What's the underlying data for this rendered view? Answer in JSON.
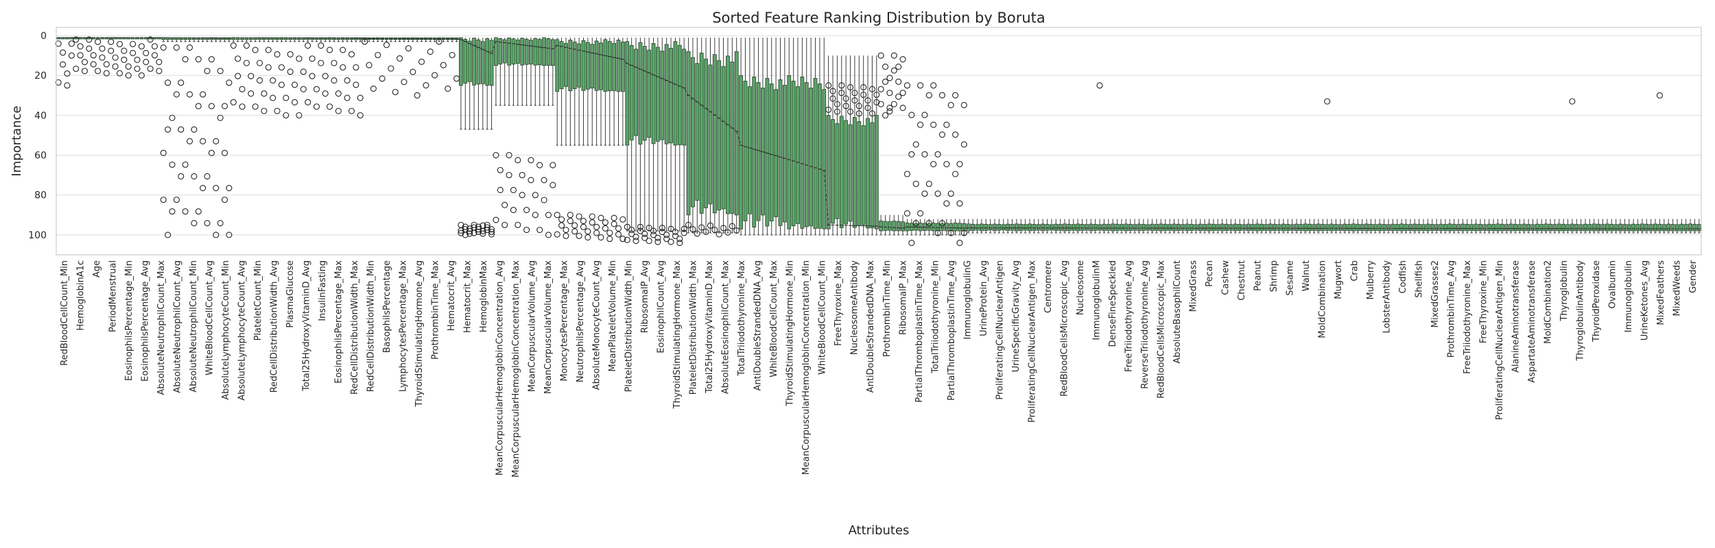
{
  "chart_data": {
    "type": "box",
    "title": "Sorted Feature Ranking Distribution by Boruta",
    "xlabel": "Attributes",
    "ylabel": "Importance",
    "y_axis_inverted": true,
    "ylim": [
      0,
      110
    ],
    "yticks": [
      0,
      20,
      40,
      60,
      80,
      100
    ],
    "grid": "horizontal",
    "box_color": "#5aa469",
    "legend": "none",
    "segments": [
      {
        "count": 4,
        "q1": 1,
        "q3": 1,
        "med": 1,
        "wlo": 1,
        "whi": 1,
        "out_lo": 4,
        "out_hi": 28,
        "n_out": 2
      },
      {
        "count": 20,
        "q1": 1,
        "q3": 1,
        "med": 1,
        "wlo": 1,
        "whi": 1,
        "out_lo": 2,
        "out_hi": 20,
        "n_out": 2
      },
      {
        "count": 16,
        "q1": 1,
        "q3": 2,
        "med": 1,
        "wlo": 1,
        "whi": 3,
        "out_lo": 6,
        "out_hi": 100,
        "n_out": 3
      },
      {
        "count": 30,
        "q1": 1,
        "q3": 2,
        "med": 1,
        "wlo": 1,
        "whi": 3,
        "out_lo": 5,
        "out_hi": 40,
        "n_out": 2
      },
      {
        "count": 22,
        "q1": 1,
        "q3": 2,
        "med": 1.5,
        "wlo": 1,
        "whi": 3,
        "out_lo": 3,
        "out_hi": 30,
        "n_out": 1
      },
      {
        "count": 8,
        "q1": 1,
        "q3": 25,
        "med": 2,
        "wlo": 1,
        "whi": 47,
        "out_lo": 95,
        "out_hi": 100,
        "n_out": 3
      },
      {
        "count": 14,
        "q1": 1,
        "q3": 15,
        "med": 3,
        "wlo": 1,
        "whi": 35,
        "out_lo": 60,
        "out_hi": 100,
        "n_out": 2
      },
      {
        "count": 16,
        "q1": 2,
        "q3": 28,
        "med": 5,
        "wlo": 1,
        "whi": 55,
        "out_lo": 90,
        "out_hi": 102,
        "n_out": 2
      },
      {
        "count": 14,
        "q1": 3,
        "q3": 55,
        "med": 14,
        "wlo": 1,
        "whi": 98,
        "out_lo": 96,
        "out_hi": 104,
        "n_out": 2
      },
      {
        "count": 12,
        "q1": 8,
        "q3": 90,
        "med": 30,
        "wlo": 1,
        "whi": 99,
        "out_lo": 95,
        "out_hi": 100,
        "n_out": 1
      },
      {
        "count": 20,
        "q1": 20,
        "q3": 97,
        "med": 55,
        "wlo": 1,
        "whi": 100,
        "out_lo": 0,
        "out_hi": 0,
        "n_out": 0
      },
      {
        "count": 12,
        "q1": 40,
        "q3": 97,
        "med": 95,
        "wlo": 10,
        "whi": 100,
        "out_lo": 25,
        "out_hi": 40,
        "n_out": 2
      },
      {
        "count": 6,
        "q1": 93,
        "q3": 98,
        "med": 96,
        "wlo": 90,
        "whi": 100,
        "out_lo": 10,
        "out_hi": 40,
        "n_out": 3
      },
      {
        "count": 14,
        "q1": 94,
        "q3": 98,
        "med": 96,
        "wlo": 92,
        "whi": 100,
        "out_lo": 25,
        "out_hi": 104,
        "n_out": 3
      },
      {
        "count": 168,
        "q1": 94.5,
        "q3": 98,
        "med": 96.5,
        "wlo": 92,
        "whi": 99,
        "out_lo": 25,
        "out_hi": 38,
        "n_out": 0
      }
    ],
    "sparse_outliers": [
      {
        "index": 190,
        "value": 38
      },
      {
        "index": 238,
        "value": 25
      },
      {
        "index": 290,
        "value": 33
      },
      {
        "index": 346,
        "value": 33
      },
      {
        "index": 366,
        "value": 30
      }
    ],
    "categories": [
      "RedBloodCellCount_Min",
      "HemoglobinA1c",
      "Age",
      "PeriodMenstrual",
      "EosinophilsPercentage_Min",
      "EosinophilsPercentage_Avg",
      "AbsoluteNeutrophilCount_Max",
      "AbsoluteNeutrophilCount_Avg",
      "AbsoluteNeutrophilCount_Min",
      "WhiteBloodCellCount_Avg",
      "AbsoluteLymphocyteCount_Min",
      "AbsoluteLymphocyteCount_Avg",
      "PlateletCount_Min",
      "RedCellDistributionWidth_Avg",
      "PlasmaGlucose",
      "Total25HydroxyVitaminD_Avg",
      "InsulinFasting",
      "EosinophilsPercentage_Max",
      "RedCellDistributionWidth_Max",
      "RedCellDistributionWidth_Min",
      "BasophilsPercentage",
      "LymphocytesPercentage_Max",
      "ThyroidStimulatingHormone_Avg",
      "ProthrombinTime_Max",
      "Hematocrit_Avg",
      "Hematocrit_Max",
      "HemoglobinMax",
      "MeanCorpuscularHemoglobinConcentration_Avg",
      "MeanCorpuscularHemoglobinConcentration_Max",
      "MeanCorpuscularVolume_Avg",
      "MeanCorpuscularVolume_Max",
      "MonocytesPercentage_Max",
      "NeutrophilsPercentage_Avg",
      "AbsoluteMonocyteCount_Avg",
      "MeanPlateletVolume_Min",
      "PlateletDistributionWidth_Min",
      "RibosomalP_Avg",
      "EosinophilCount_Avg",
      "ThyroidStimulatingHormone_Max",
      "PlateletDistributionWidth_Max",
      "Total25HydroxyVitaminD_Max",
      "AbsoluteEosinophilCount_Max",
      "TotalTriiodothyronine_Max",
      "AntiDoubleStrandedDNA_Avg",
      "WhiteBloodCellCount_Max",
      "ThyroidStimulatingHormone_Min",
      "MeanCorpuscularHemoglobinConcentration_Min",
      "WhiteBloodCellCount_Min",
      "FreeThyroxine_Max",
      "NucleosomeAntibody",
      "AntiDoubleStrandedDNA_Max",
      "ProthrombinTime_Min",
      "RibosomalP_Max",
      "PartialThromboplastinTime_Max",
      "TotalTriiodothyronine_Min",
      "PartialThromboplastinTime_Avg",
      "ImmunoglobulinG",
      "UrineProtein_Avg",
      "ProliferatingCellNuclearAntigen",
      "UrineSpecificGravity_Avg",
      "ProliferatingCellNuclearAntigen_Max",
      "Centromere",
      "RedBloodCellsMicroscopic_Avg",
      "Nucleosome",
      "ImmunoglobulinM",
      "DenseFineSpeckled",
      "FreeTriiodothyronine_Avg",
      "ReverseTriiodothyronine_Avg",
      "RedBloodCellsMicroscopic_Max",
      "AbsoluteBasophilCount",
      "MixedGrass",
      "Pecan",
      "Cashew",
      "Chestnut",
      "Peanut",
      "Shrimp",
      "Sesame",
      "Walnut",
      "MoldCombination",
      "Mugwort",
      "Crab",
      "Mulberry",
      "LobsterAntibody",
      "Codfish",
      "Shellfish",
      "MixedGrasses2",
      "ProthrombinTime_Avg",
      "FreeTriiodothyronine_Max",
      "FreeThyroxine_Min",
      "ProliferatingCellNuclearAntigen_Min",
      "AlanineAminotransferase",
      "AspartateAminotransferase",
      "MoldCombination2",
      "Thyroglobulin",
      "ThyroglobulinAntibody",
      "ThyroidPeroxidase",
      "Ovalbumin",
      "Immunoglobulin",
      "UrineKetones_Avg",
      "MixedFeathers",
      "MixedWeeds",
      "Gender"
    ]
  }
}
